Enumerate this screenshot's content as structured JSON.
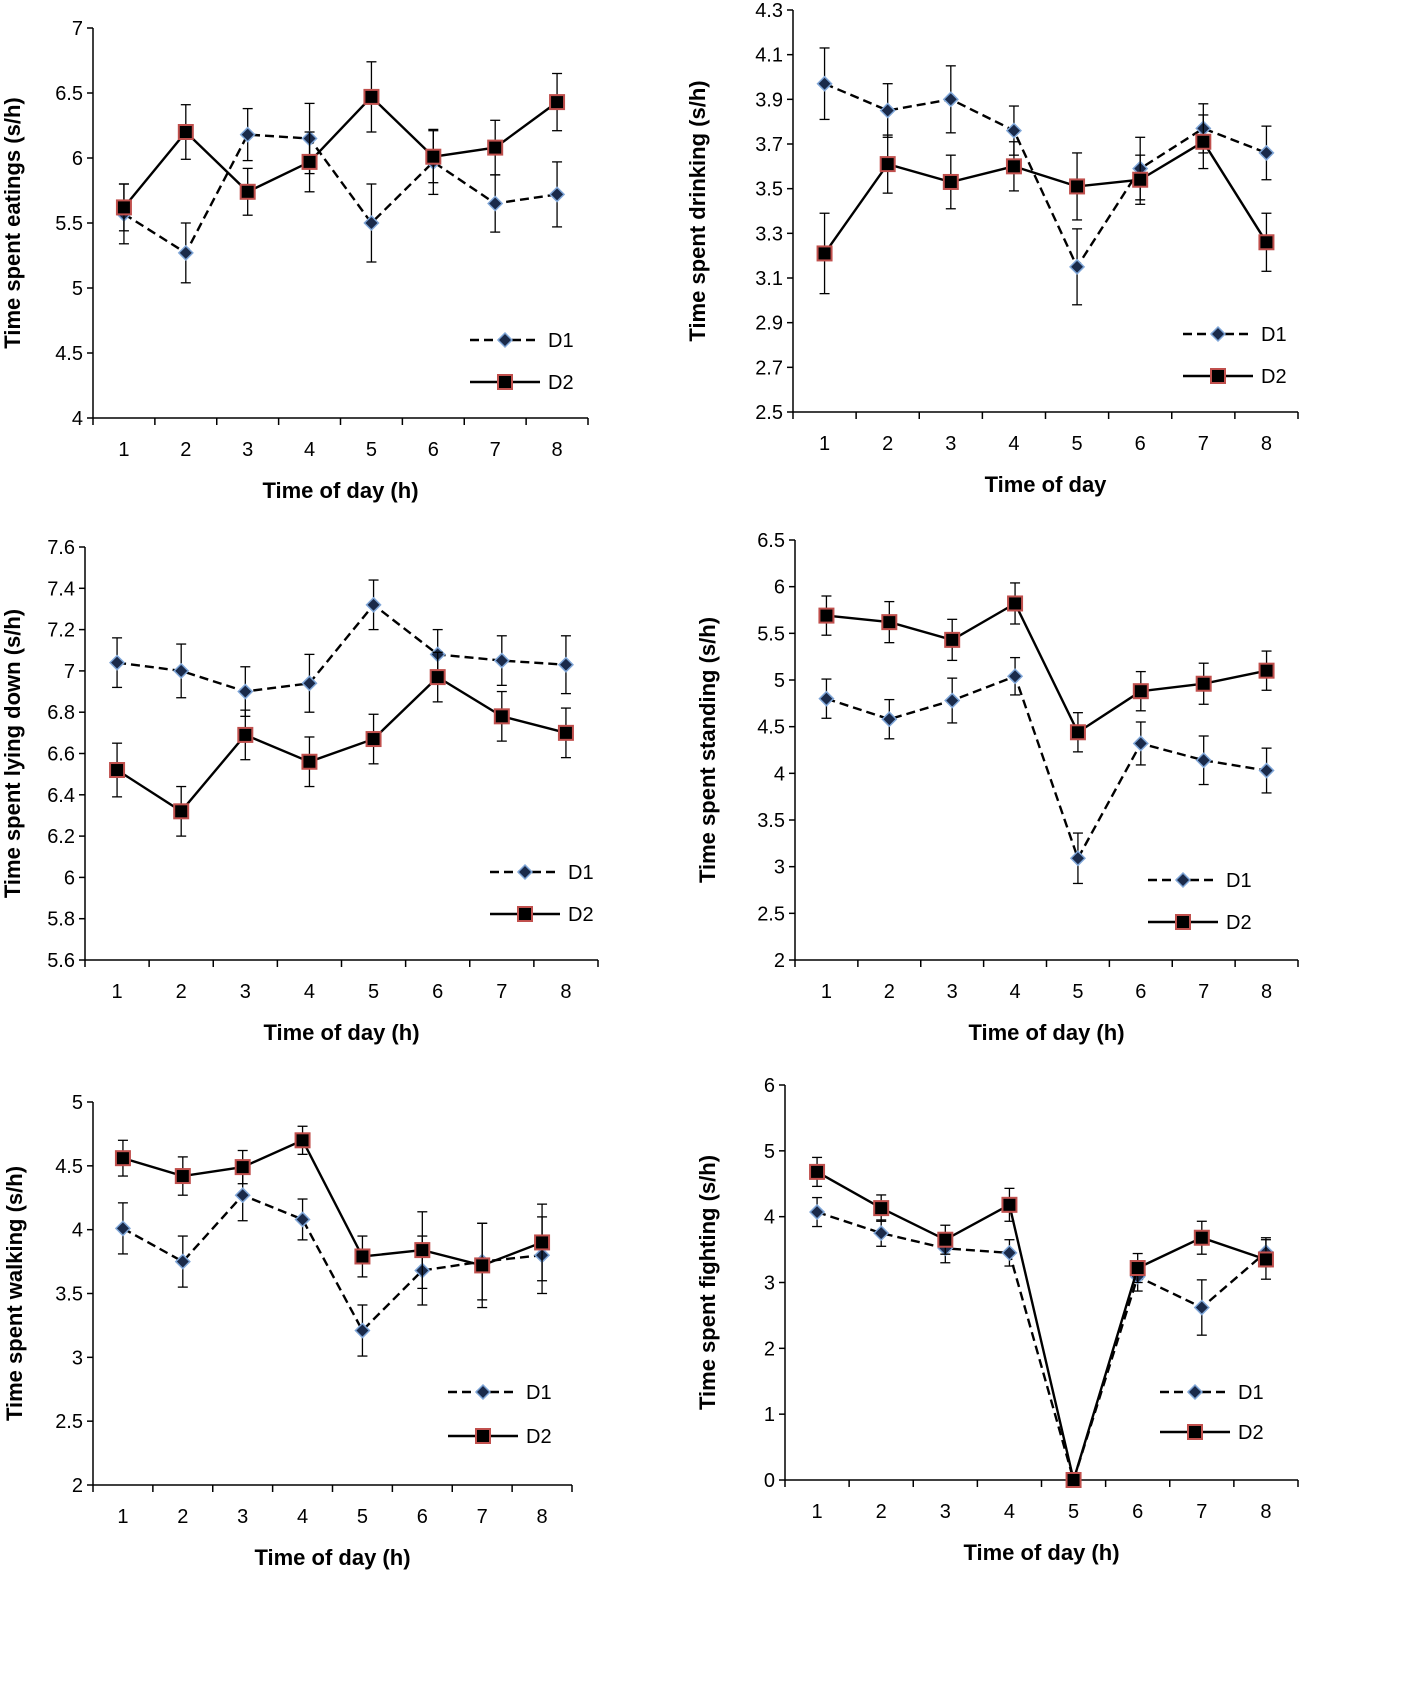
{
  "chart_data": [
    {
      "type": "line",
      "xlabel": "Time of day (h)",
      "ylabel": "Time spent eatings (s/h)",
      "ylim": [
        4,
        7
      ],
      "yticks": [
        4,
        4.5,
        5,
        5.5,
        6,
        6.5,
        7
      ],
      "categories": [
        1,
        2,
        3,
        4,
        5,
        6,
        7,
        8
      ],
      "legend": "bottom-right",
      "series": [
        {
          "name": "D1",
          "values": [
            5.57,
            5.27,
            6.18,
            6.15,
            5.5,
            5.97,
            5.65,
            5.72
          ],
          "errors": [
            0.23,
            0.23,
            0.2,
            0.27,
            0.3,
            0.25,
            0.22,
            0.25
          ]
        },
        {
          "name": "D2",
          "values": [
            5.62,
            6.2,
            5.74,
            5.97,
            6.47,
            6.01,
            6.08,
            6.43
          ],
          "errors": [
            0.18,
            0.21,
            0.18,
            0.23,
            0.27,
            0.2,
            0.21,
            0.22
          ]
        }
      ]
    },
    {
      "type": "line",
      "xlabel": "Time of day",
      "ylabel": "Time spent drinking (s/h)",
      "ylim": [
        2.5,
        4.3
      ],
      "yticks": [
        2.5,
        2.7,
        2.9,
        3.1,
        3.3,
        3.5,
        3.7,
        3.9,
        4.1,
        4.3
      ],
      "categories": [
        1,
        2,
        3,
        4,
        5,
        6,
        7,
        8
      ],
      "legend": "bottom-right",
      "series": [
        {
          "name": "D1",
          "values": [
            3.97,
            3.85,
            3.9,
            3.76,
            3.15,
            3.59,
            3.77,
            3.66
          ],
          "errors": [
            0.16,
            0.12,
            0.15,
            0.11,
            0.17,
            0.14,
            0.11,
            0.12
          ]
        },
        {
          "name": "D2",
          "values": [
            3.21,
            3.61,
            3.53,
            3.6,
            3.51,
            3.54,
            3.71,
            3.26
          ],
          "errors": [
            0.18,
            0.13,
            0.12,
            0.11,
            0.15,
            0.11,
            0.12,
            0.13
          ]
        }
      ]
    },
    {
      "type": "line",
      "xlabel": "Time of day (h)",
      "ylabel": "Time spent lying down (s/h)",
      "ylim": [
        5.6,
        7.6
      ],
      "yticks": [
        5.6,
        5.8,
        6,
        6.2,
        6.4,
        6.6,
        6.8,
        7,
        7.2,
        7.4,
        7.6
      ],
      "categories": [
        1,
        2,
        3,
        4,
        5,
        6,
        7,
        8
      ],
      "legend": "bottom-right",
      "series": [
        {
          "name": "D1",
          "values": [
            7.04,
            7.0,
            6.9,
            6.94,
            7.32,
            7.08,
            7.05,
            7.03
          ],
          "errors": [
            0.12,
            0.13,
            0.12,
            0.14,
            0.12,
            0.12,
            0.12,
            0.14
          ]
        },
        {
          "name": "D2",
          "values": [
            6.52,
            6.32,
            6.69,
            6.56,
            6.67,
            6.97,
            6.78,
            6.7
          ],
          "errors": [
            0.13,
            0.12,
            0.12,
            0.12,
            0.12,
            0.12,
            0.12,
            0.12
          ]
        }
      ]
    },
    {
      "type": "line",
      "xlabel": "Time of day (h)",
      "ylabel": "Time spent standing (s/h)",
      "ylim": [
        2,
        6.5
      ],
      "yticks": [
        2,
        2.5,
        3,
        3.5,
        4,
        4.5,
        5,
        5.5,
        6,
        6.5
      ],
      "categories": [
        1,
        2,
        3,
        4,
        5,
        6,
        7,
        8
      ],
      "legend": "bottom-right",
      "series": [
        {
          "name": "D1",
          "values": [
            4.8,
            4.58,
            4.78,
            5.04,
            3.09,
            4.32,
            4.14,
            4.03
          ],
          "errors": [
            0.21,
            0.21,
            0.24,
            0.2,
            0.27,
            0.23,
            0.26,
            0.24
          ]
        },
        {
          "name": "D2",
          "values": [
            5.69,
            5.62,
            5.43,
            5.82,
            4.44,
            4.88,
            4.96,
            5.1
          ],
          "errors": [
            0.21,
            0.22,
            0.22,
            0.22,
            0.21,
            0.21,
            0.22,
            0.21
          ]
        }
      ]
    },
    {
      "type": "line",
      "xlabel": "Time of day (h)",
      "ylabel": "Time spent walking (s/h)",
      "ylim": [
        2,
        5
      ],
      "yticks": [
        2,
        2.5,
        3,
        3.5,
        4,
        4.5,
        5
      ],
      "categories": [
        1,
        2,
        3,
        4,
        5,
        6,
        7,
        8
      ],
      "legend": "bottom-right",
      "series": [
        {
          "name": "D1",
          "values": [
            4.01,
            3.75,
            4.27,
            4.08,
            3.21,
            3.68,
            3.75,
            3.8
          ],
          "errors": [
            0.2,
            0.2,
            0.2,
            0.16,
            0.2,
            0.27,
            0.3,
            0.3
          ]
        },
        {
          "name": "D2",
          "values": [
            4.56,
            4.42,
            4.49,
            4.7,
            3.79,
            3.84,
            3.72,
            3.9
          ],
          "errors": [
            0.14,
            0.15,
            0.13,
            0.11,
            0.16,
            0.3,
            0.33,
            0.3
          ]
        }
      ]
    },
    {
      "type": "line",
      "xlabel": "Time of day (h)",
      "ylabel": "Time spent fighting (s/h)",
      "ylim": [
        0,
        6
      ],
      "yticks": [
        0,
        1,
        2,
        3,
        4,
        5,
        6
      ],
      "categories": [
        1,
        2,
        3,
        4,
        5,
        6,
        7,
        8
      ],
      "legend": "bottom-right",
      "series": [
        {
          "name": "D1",
          "values": [
            4.07,
            3.75,
            3.52,
            3.45,
            0.0,
            3.09,
            2.62,
            3.46
          ],
          "errors": [
            0.22,
            0.2,
            0.22,
            0.2,
            0,
            0.22,
            0.42,
            0.22
          ]
        },
        {
          "name": "D2",
          "values": [
            4.68,
            4.13,
            3.65,
            4.18,
            0.0,
            3.22,
            3.68,
            3.35
          ],
          "errors": [
            0.22,
            0.2,
            0.22,
            0.25,
            0,
            0.22,
            0.25,
            0.3
          ]
        }
      ]
    }
  ]
}
